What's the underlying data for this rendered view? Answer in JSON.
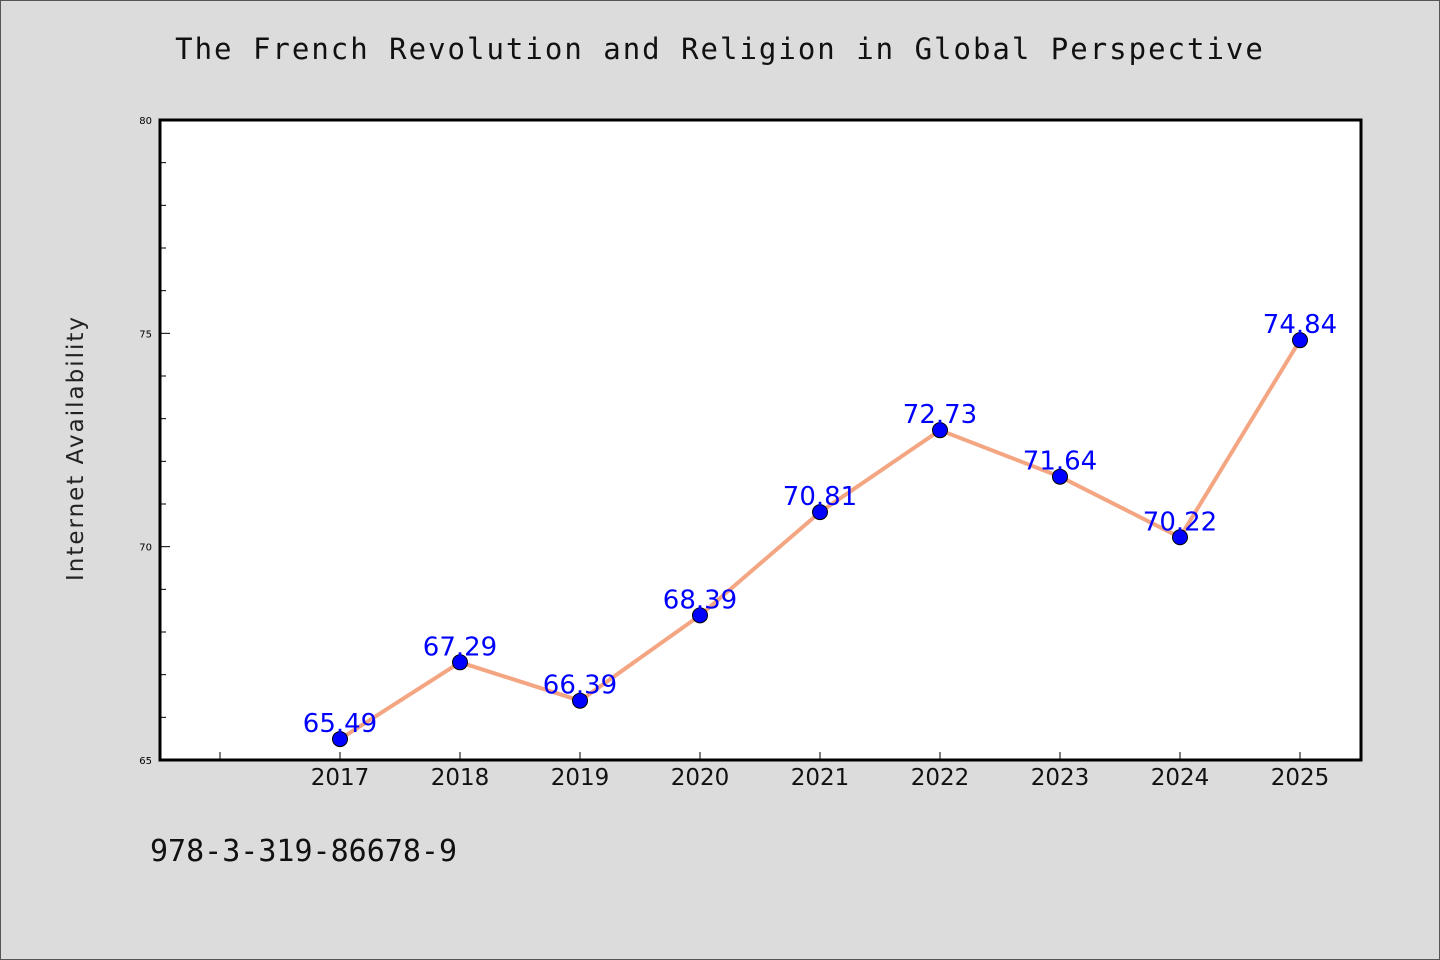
{
  "chart_data": {
    "type": "line",
    "title": "The French Revolution and Religion in Global Perspective",
    "xlabel": "",
    "ylabel": "Internet Availability",
    "categories": [
      "2017",
      "2018",
      "2019",
      "2020",
      "2021",
      "2022",
      "2023",
      "2024",
      "2025"
    ],
    "series": [
      {
        "values": [
          65.49,
          67.29,
          66.39,
          68.39,
          70.81,
          72.73,
          71.64,
          70.22,
          74.84
        ]
      }
    ],
    "data_labels": [
      "65.49",
      "67.29",
      "66.39",
      "68.39",
      "70.81",
      "72.73",
      "71.64",
      "70.22",
      "74.84"
    ],
    "ylim": [
      65,
      80
    ],
    "yticks": [
      "65",
      "70",
      "75",
      "80"
    ],
    "grid": false,
    "colors": {
      "line": "#f4a582",
      "marker": "#0000ff",
      "label": "#0000ff"
    }
  },
  "footer": {
    "isbn": "978-3-319-86678-9"
  }
}
